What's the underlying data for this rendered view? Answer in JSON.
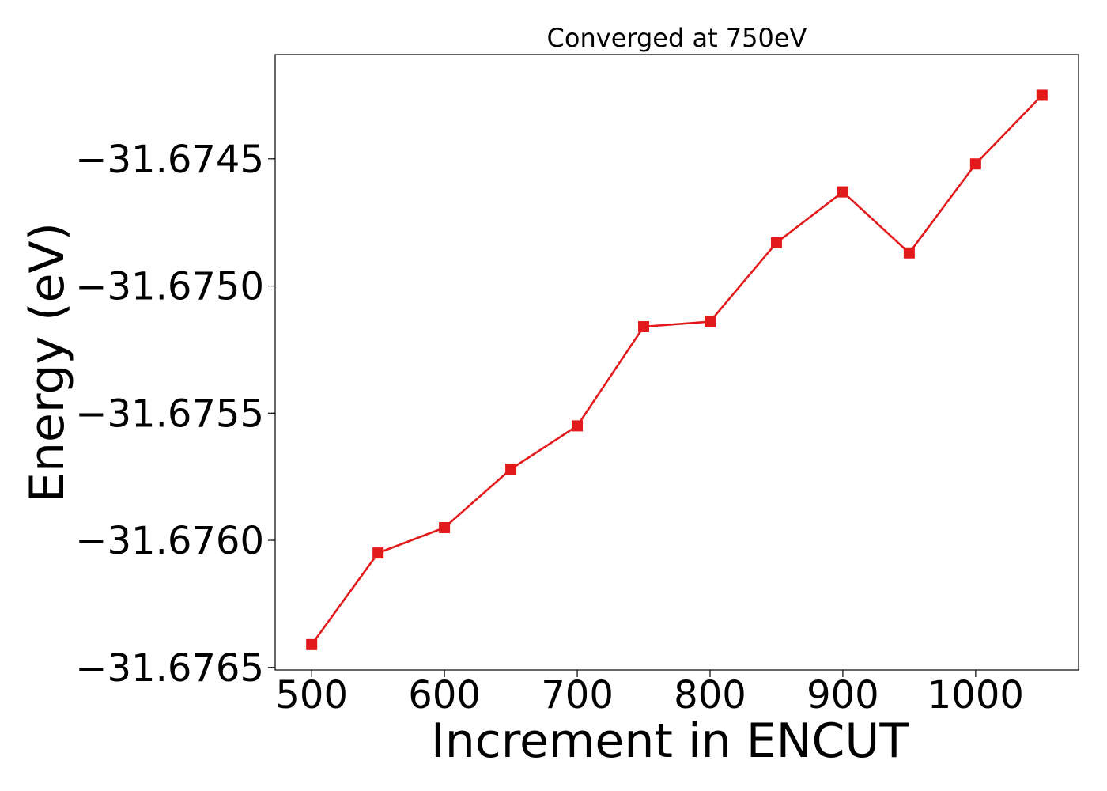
{
  "chart_data": {
    "type": "line",
    "title": "Converged at 750eV",
    "xlabel": "Increment in ENCUT",
    "ylabel": "Energy (eV)",
    "x": [
      500,
      550,
      600,
      650,
      700,
      750,
      800,
      850,
      900,
      950,
      1000,
      1050
    ],
    "series": [
      {
        "values": [
          -31.67641,
          -31.67605,
          -31.67595,
          -31.67572,
          -31.67555,
          -31.67516,
          -31.67514,
          -31.67483,
          -31.67463,
          -31.67487,
          -31.67452,
          -31.67425
        ]
      }
    ],
    "xlim": [
      472.5,
      1077.5
    ],
    "ylim": [
      -31.67651,
      -31.67409
    ],
    "xticks": [
      500,
      600,
      700,
      800,
      900,
      1000
    ],
    "xtick_labels": [
      "500",
      "600",
      "700",
      "800",
      "900",
      "1000"
    ],
    "yticks": [
      -31.6765,
      -31.676,
      -31.6755,
      -31.675,
      -31.6745
    ],
    "ytick_labels": [
      "−31.6765",
      "−31.6760",
      "−31.6755",
      "−31.6750",
      "−31.6745"
    ],
    "grid": false,
    "line_color": "#e31a1c",
    "marker": "square"
  }
}
